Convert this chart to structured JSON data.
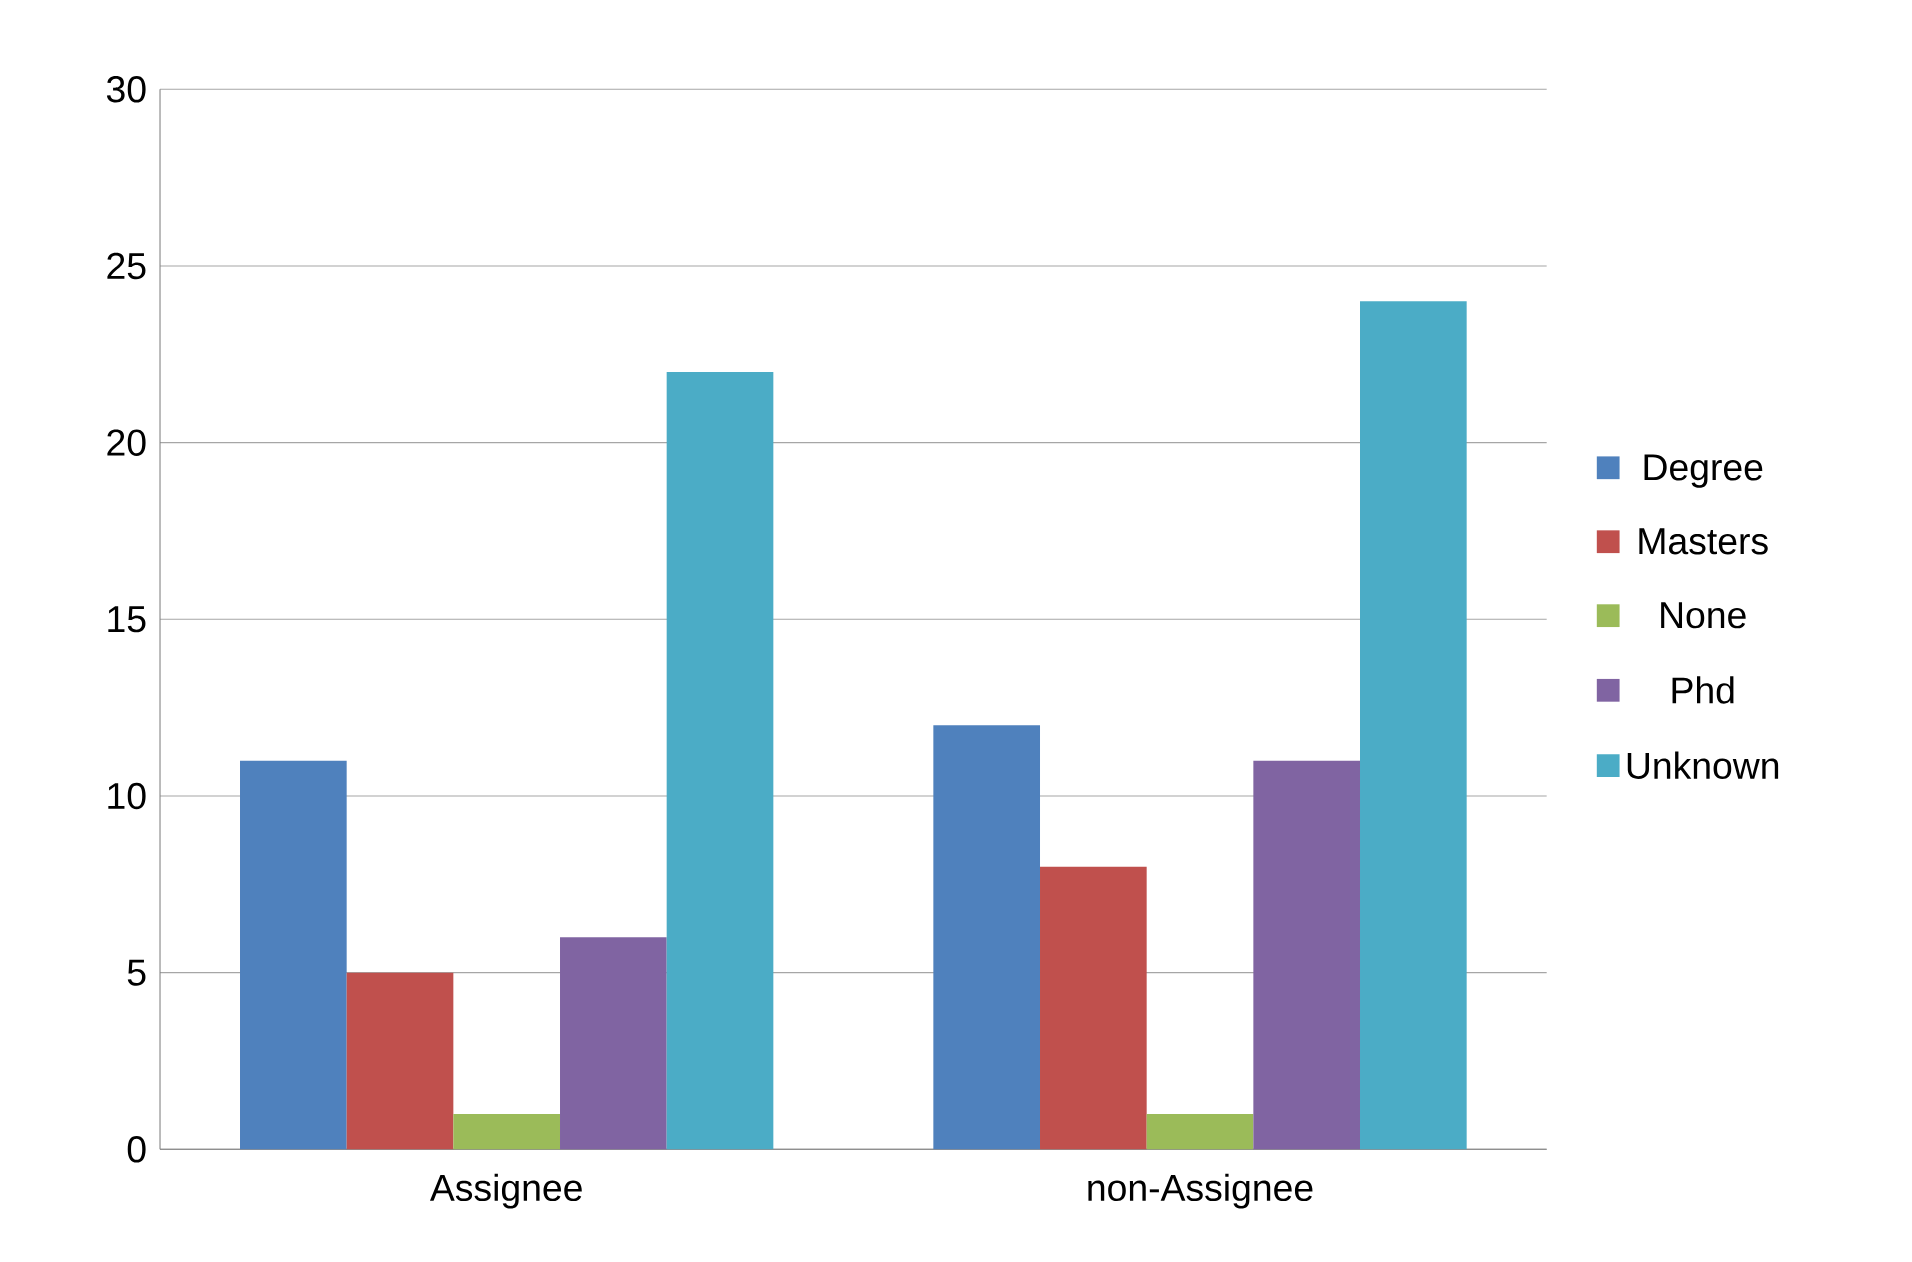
{
  "chart_data": {
    "type": "bar",
    "categories": [
      "Assignee",
      "non-Assignee"
    ],
    "series": [
      {
        "name": "Degree",
        "color": "#4f81bd",
        "values": [
          11,
          12
        ]
      },
      {
        "name": "Masters",
        "color": "#c0504d",
        "values": [
          5,
          8
        ]
      },
      {
        "name": "None",
        "color": "#9bbb59",
        "values": [
          1,
          1
        ]
      },
      {
        "name": "Phd",
        "color": "#8064a2",
        "values": [
          6,
          11
        ]
      },
      {
        "name": "Unknown",
        "color": "#4bacc6",
        "values": [
          22,
          24
        ]
      }
    ],
    "ylim": [
      0,
      30
    ],
    "yticks": [
      0,
      5,
      10,
      15,
      20,
      25,
      30
    ],
    "grid": "y",
    "legend": "right"
  }
}
